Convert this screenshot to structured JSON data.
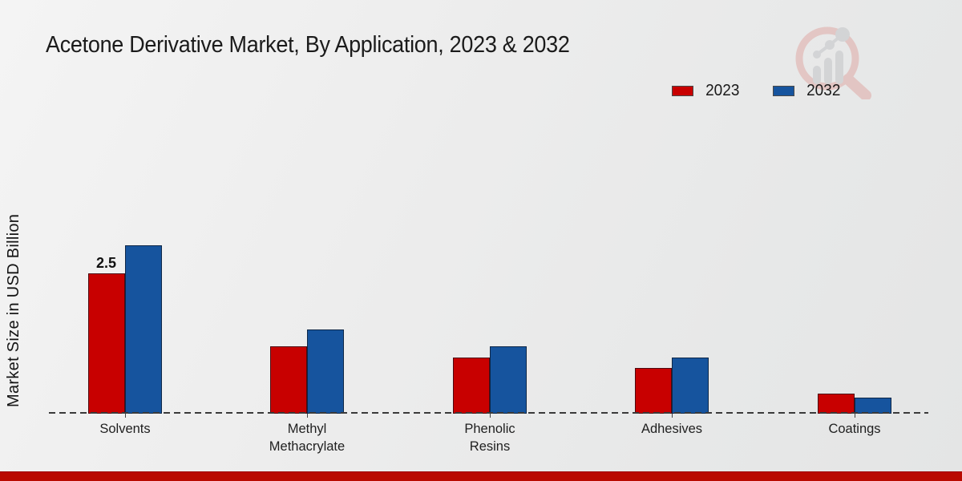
{
  "page_title": "Acetone Derivative Market, By Application, 2023 & 2032",
  "colors": {
    "series_2023": "#c80000",
    "series_2032": "#16549e",
    "footer_bar": "#b90a01",
    "axis_dash": "#3a3a3a",
    "background": "#ececec"
  },
  "watermark": {
    "icon": "magnifier-bar-chart-logo"
  },
  "chart_data": {
    "type": "bar",
    "title": "Acetone Derivative Market, By Application, 2023 & 2032",
    "xlabel": "",
    "ylabel": "Market Size in USD Billion",
    "categories": [
      "Solvents",
      "Methyl\nMethacrylate",
      "Phenolic\nResins",
      "Adhesives",
      "Coatings"
    ],
    "series": [
      {
        "name": "2023",
        "color": "#c80000",
        "values": [
          2.5,
          1.2,
          1.0,
          0.82,
          0.35
        ]
      },
      {
        "name": "2032",
        "color": "#16549e",
        "values": [
          3.0,
          1.5,
          1.2,
          1.0,
          0.28
        ]
      }
    ],
    "annotations": [
      {
        "series": 0,
        "category": 0,
        "text": "2.5"
      }
    ],
    "baseline_value": 0,
    "ylim": [
      0,
      3.5
    ],
    "grid": false,
    "legend_position": "top-right",
    "axis_style": "dashed-baseline-only"
  }
}
